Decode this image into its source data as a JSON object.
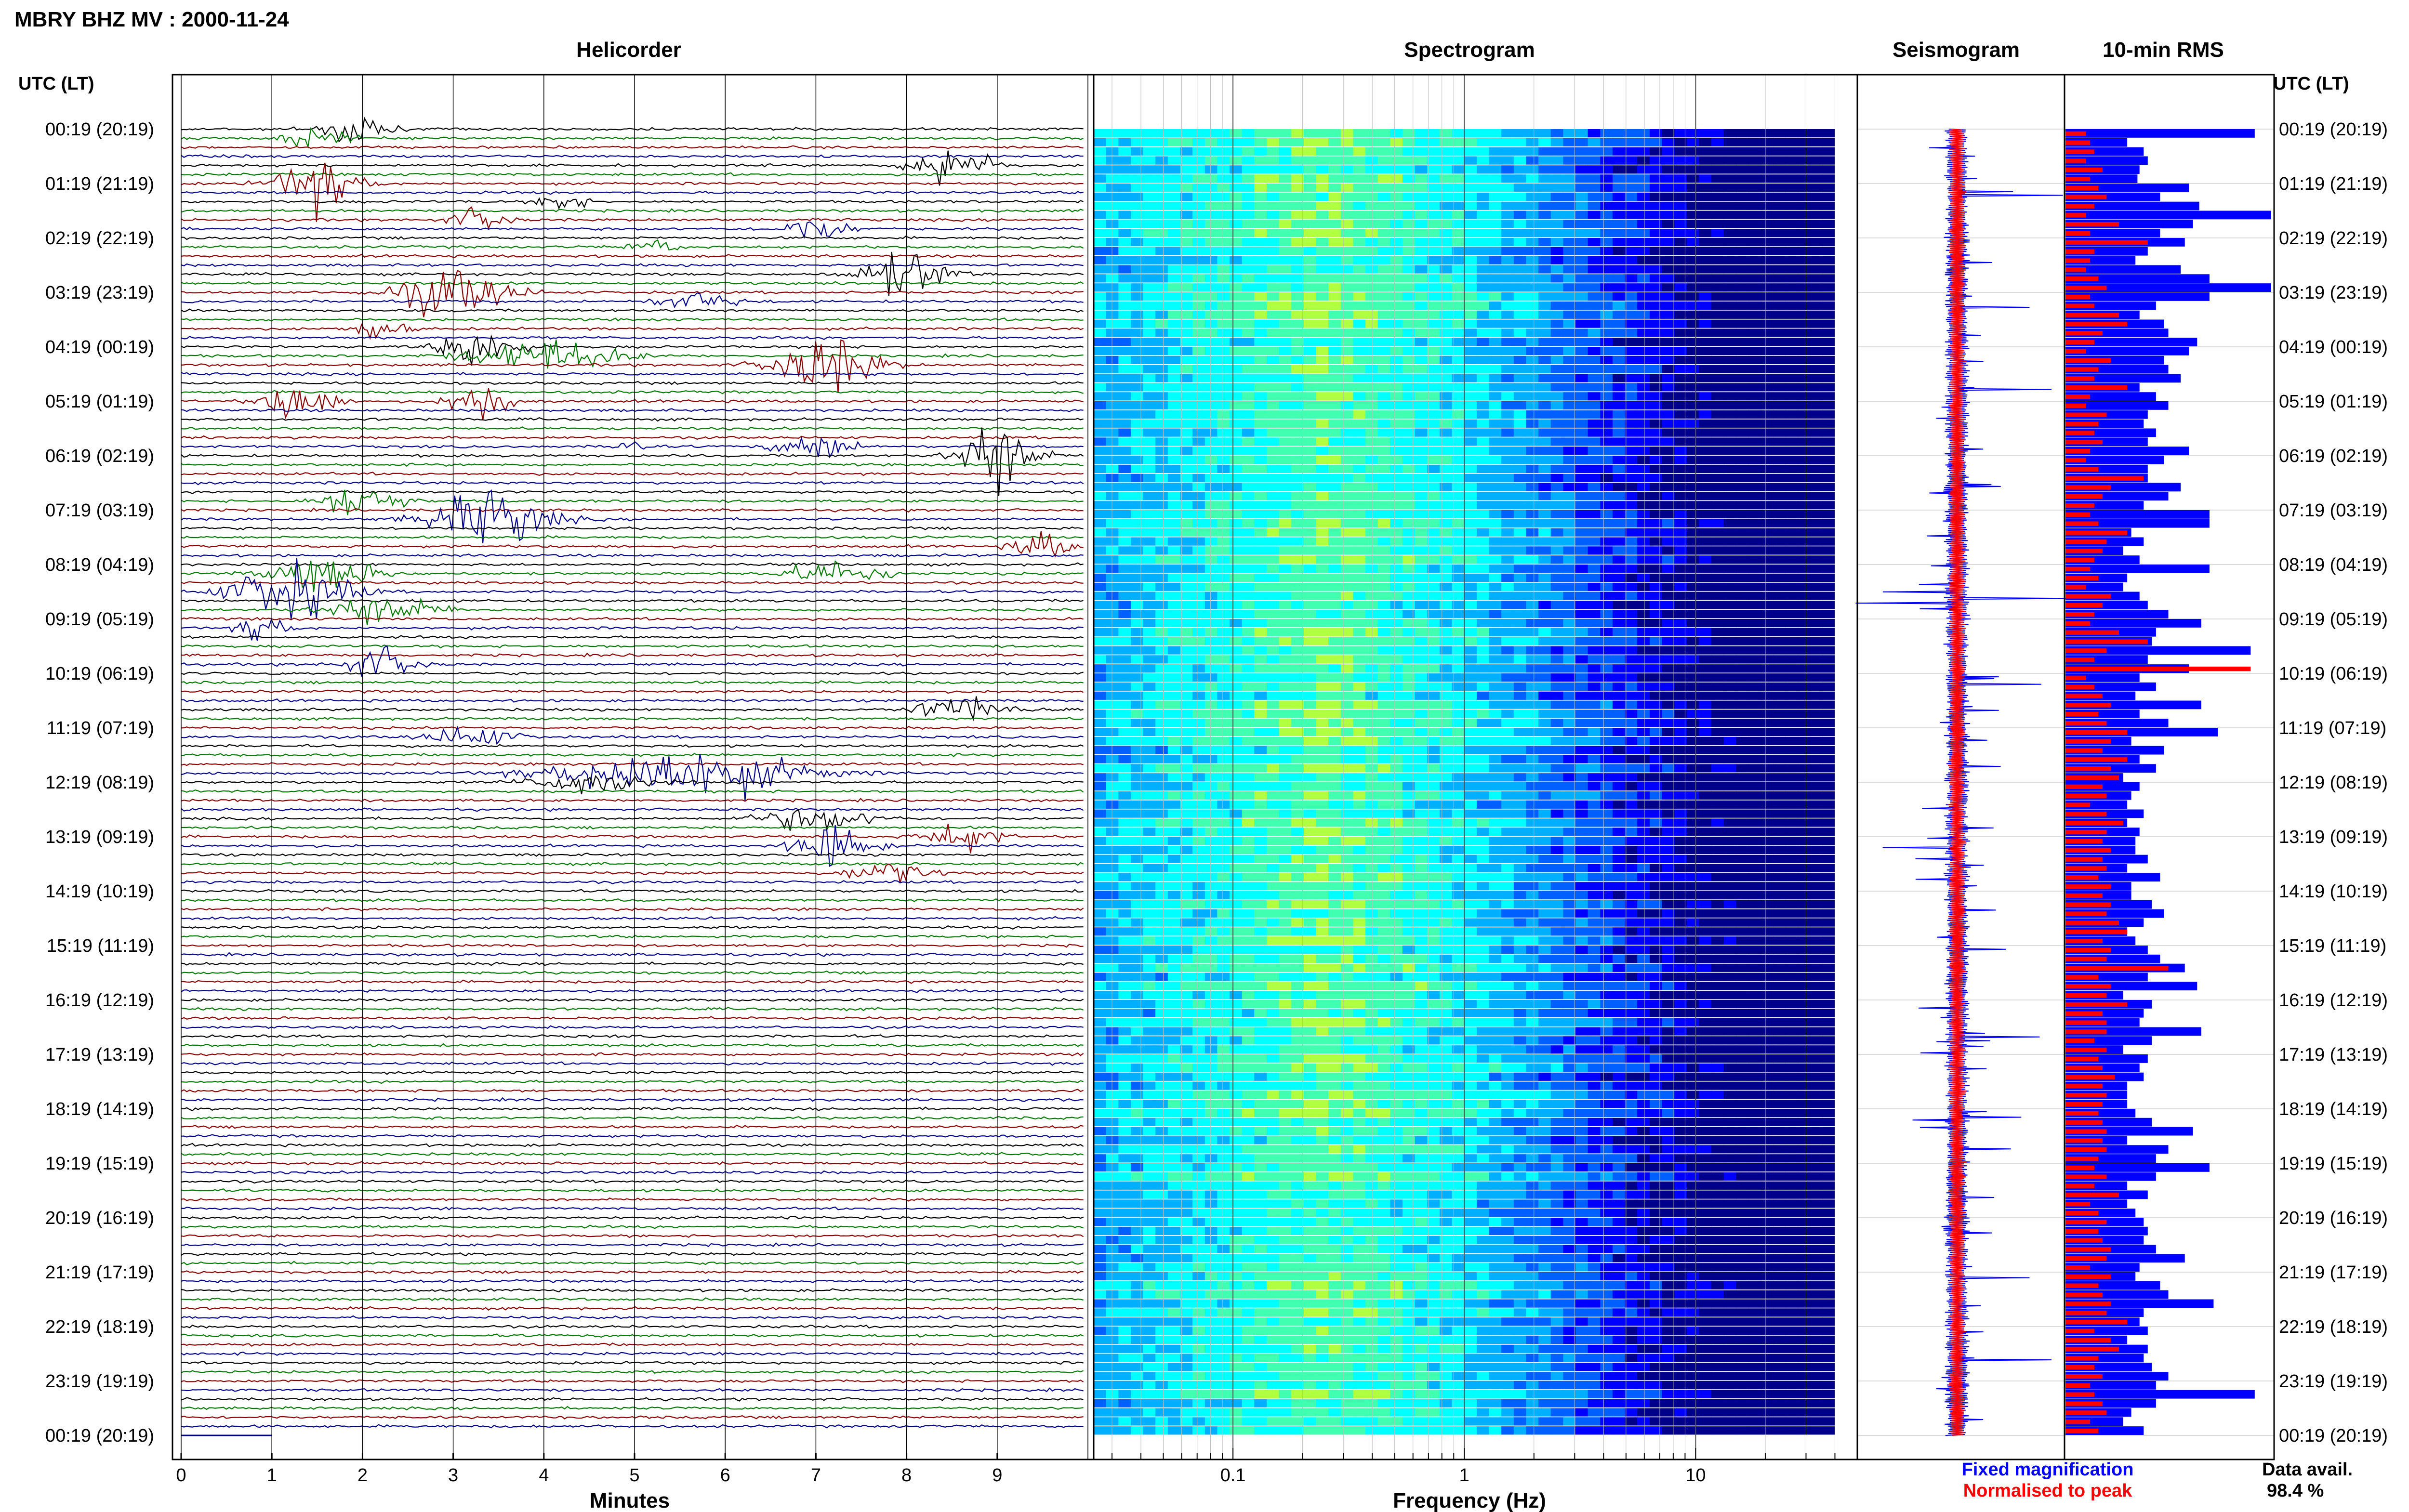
{
  "header": {
    "title": "MBRY BHZ MV : 2000-11-24",
    "utc_label_left": "UTC (LT)",
    "utc_label_right": "UTC (LT)"
  },
  "panels": {
    "helicorder": "Helicorder",
    "spectrogram": "Spectrogram",
    "seismogram": "Seismogram",
    "rms": "10-min RMS"
  },
  "time_labels": [
    "00:19 (20:19)",
    "01:19 (21:19)",
    "02:19 (22:19)",
    "03:19 (23:19)",
    "04:19 (00:19)",
    "05:19 (01:19)",
    "06:19 (02:19)",
    "07:19 (03:19)",
    "08:19 (04:19)",
    "09:19 (05:19)",
    "10:19 (06:19)",
    "11:19 (07:19)",
    "12:19 (08:19)",
    "13:19 (09:19)",
    "14:19 (10:19)",
    "15:19 (11:19)",
    "16:19 (12:19)",
    "17:19 (13:19)",
    "18:19 (14:19)",
    "19:19 (15:19)",
    "20:19 (16:19)",
    "21:19 (17:19)",
    "22:19 (18:19)",
    "23:19 (19:19)",
    "00:19 (20:19)"
  ],
  "legend": {
    "fixed": "Fixed magnification",
    "normalised": "Normalised to peak",
    "fixed_color": "#0000ff",
    "normalised_color": "#ff0000"
  },
  "data_avail": {
    "label": "Data avail.",
    "value": "98.4 %"
  },
  "chart_data": [
    {
      "type": "line",
      "name": "helicorder",
      "xlabel": "Minutes",
      "xticks": [
        "0",
        "1",
        "2",
        "3",
        "4",
        "5",
        "6",
        "7",
        "8",
        "9"
      ],
      "xlim": [
        0,
        10
      ],
      "rows_per_hour": 6,
      "row_colors": [
        "#000000",
        "#007a00",
        "#8b0000",
        "#00008b"
      ],
      "events": [
        {
          "row": 0,
          "minute": 1.9,
          "width": 0.9,
          "amp": 3.0
        },
        {
          "row": 1,
          "minute": 1.5,
          "width": 0.8,
          "amp": 2.0
        },
        {
          "row": 4,
          "minute": 8.5,
          "width": 1.0,
          "amp": 4.5
        },
        {
          "row": 6,
          "minute": 1.5,
          "width": 1.1,
          "amp": 4.5
        },
        {
          "row": 8,
          "minute": 4.2,
          "width": 0.6,
          "amp": 2.0
        },
        {
          "row": 10,
          "minute": 3.3,
          "width": 0.8,
          "amp": 2.0
        },
        {
          "row": 11,
          "minute": 7.0,
          "width": 0.9,
          "amp": 2.2
        },
        {
          "row": 13,
          "minute": 5.2,
          "width": 0.6,
          "amp": 1.5
        },
        {
          "row": 16,
          "minute": 8.0,
          "width": 1.2,
          "amp": 4.0
        },
        {
          "row": 18,
          "minute": 3.0,
          "width": 1.6,
          "amp": 4.0
        },
        {
          "row": 19,
          "minute": 5.7,
          "width": 1.1,
          "amp": 1.6
        },
        {
          "row": 22,
          "minute": 2.2,
          "width": 0.7,
          "amp": 1.8
        },
        {
          "row": 24,
          "minute": 3.3,
          "width": 1.0,
          "amp": 4.0
        },
        {
          "row": 25,
          "minute": 4.0,
          "width": 2.0,
          "amp": 2.8
        },
        {
          "row": 26,
          "minute": 7.1,
          "width": 1.4,
          "amp": 5.0
        },
        {
          "row": 30,
          "minute": 1.3,
          "width": 0.9,
          "amp": 4.0
        },
        {
          "row": 30,
          "minute": 3.3,
          "width": 0.8,
          "amp": 4.0
        },
        {
          "row": 35,
          "minute": 5.0,
          "width": 0.4,
          "amp": 2.0
        },
        {
          "row": 35,
          "minute": 7.0,
          "width": 1.0,
          "amp": 2.4
        },
        {
          "row": 36,
          "minute": 9.0,
          "width": 1.0,
          "amp": 6.5
        },
        {
          "row": 41,
          "minute": 2.0,
          "width": 1.0,
          "amp": 3.5
        },
        {
          "row": 43,
          "minute": 3.4,
          "width": 1.6,
          "amp": 5.0
        },
        {
          "row": 46,
          "minute": 9.5,
          "width": 0.8,
          "amp": 2.2
        },
        {
          "row": 49,
          "minute": 1.6,
          "width": 1.4,
          "amp": 3.0
        },
        {
          "row": 49,
          "minute": 7.2,
          "width": 1.4,
          "amp": 2.0
        },
        {
          "row": 51,
          "minute": 1.2,
          "width": 1.6,
          "amp": 5.0
        },
        {
          "row": 53,
          "minute": 2.2,
          "width": 1.5,
          "amp": 2.5
        },
        {
          "row": 55,
          "minute": 0.9,
          "width": 0.6,
          "amp": 2.8
        },
        {
          "row": 59,
          "minute": 2.2,
          "width": 1.0,
          "amp": 2.8
        },
        {
          "row": 64,
          "minute": 8.6,
          "width": 1.2,
          "amp": 2.4
        },
        {
          "row": 67,
          "minute": 3.2,
          "width": 1.2,
          "amp": 1.8
        },
        {
          "row": 71,
          "minute": 5.5,
          "width": 3.2,
          "amp": 4.5
        },
        {
          "row": 72,
          "minute": 4.5,
          "width": 1.6,
          "amp": 2.0
        },
        {
          "row": 76,
          "minute": 7.0,
          "width": 1.6,
          "amp": 2.0
        },
        {
          "row": 78,
          "minute": 8.6,
          "width": 1.0,
          "amp": 2.4
        },
        {
          "row": 79,
          "minute": 7.2,
          "width": 1.0,
          "amp": 4.0
        },
        {
          "row": 82,
          "minute": 7.8,
          "width": 1.2,
          "amp": 1.8
        }
      ]
    },
    {
      "type": "heatmap",
      "name": "spectrogram",
      "xlabel": "Frequency (Hz)",
      "xscale": "log",
      "xlim": [
        0.025,
        50
      ],
      "xticks": [
        "0.1",
        "1",
        "10"
      ],
      "data_fmax": 40,
      "colormap": [
        "#00008b",
        "#0000ff",
        "#0060ff",
        "#00b0ff",
        "#00ffff",
        "#40ffb0",
        "#b0ff40",
        "#ffff00",
        "#ff8000"
      ],
      "peak_band_hz": [
        0.15,
        0.4
      ],
      "rows": 144
    },
    {
      "type": "line",
      "name": "seismogram",
      "series": [
        {
          "name": "Fixed magnification",
          "color": "#0000ff"
        },
        {
          "name": "Normalised to peak",
          "color": "#ff0000"
        }
      ]
    },
    {
      "type": "bar",
      "name": "10-min RMS",
      "orientation": "horizontal",
      "series": [
        {
          "name": "Fixed magnification",
          "color": "#0000ff",
          "values": [
            0.92,
            0.3,
            0.38,
            0.4,
            0.36,
            0.35,
            0.6,
            0.46,
            0.65,
            1.0,
            0.62,
            0.46,
            0.58,
            0.4,
            0.34,
            0.56,
            0.7,
            1.0,
            0.7,
            0.44,
            0.36,
            0.48,
            0.5,
            0.64,
            0.6,
            0.48,
            0.5,
            0.56,
            0.36,
            0.44,
            0.5,
            0.4,
            0.38,
            0.44,
            0.4,
            0.6,
            0.48,
            0.4,
            0.4,
            0.56,
            0.5,
            0.38,
            0.7,
            0.7,
            0.32,
            0.38,
            0.28,
            0.36,
            0.7,
            0.3,
            0.28,
            0.36,
            0.4,
            0.5,
            0.66,
            0.44,
            0.42,
            0.9,
            0.4,
            0.6,
            0.36,
            0.44,
            0.34,
            0.66,
            0.36,
            0.5,
            0.74,
            0.32,
            0.48,
            0.36,
            0.44,
            0.28,
            0.36,
            0.32,
            0.3,
            0.38,
            0.3,
            0.36,
            0.34,
            0.34,
            0.4,
            0.3,
            0.46,
            0.32,
            0.32,
            0.42,
            0.48,
            0.38,
            0.3,
            0.34,
            0.4,
            0.46,
            0.58,
            0.4,
            0.64,
            0.28,
            0.42,
            0.38,
            0.36,
            0.66,
            0.42,
            0.28,
            0.4,
            0.36,
            0.38,
            0.3,
            0.3,
            0.3,
            0.34,
            0.42,
            0.62,
            0.3,
            0.5,
            0.44,
            0.7,
            0.44,
            0.3,
            0.4,
            0.3,
            0.34,
            0.38,
            0.4,
            0.38,
            0.44,
            0.58,
            0.36,
            0.34,
            0.46,
            0.5,
            0.72,
            0.38,
            0.36,
            0.4,
            0.3,
            0.4,
            0.38,
            0.42,
            0.5,
            0.44,
            0.92,
            0.44,
            0.32,
            0.28,
            0.38
          ]
        },
        {
          "name": "Normalised to peak",
          "color": "#ff0000",
          "values": [
            0.1,
            0.12,
            0.14,
            0.1,
            0.18,
            0.12,
            0.16,
            0.2,
            0.14,
            0.1,
            0.26,
            0.12,
            0.4,
            0.14,
            0.12,
            0.1,
            0.16,
            0.2,
            0.12,
            0.14,
            0.26,
            0.3,
            0.18,
            0.14,
            0.1,
            0.22,
            0.16,
            0.14,
            0.3,
            0.12,
            0.1,
            0.2,
            0.16,
            0.14,
            0.18,
            0.12,
            0.1,
            0.16,
            0.38,
            0.22,
            0.18,
            0.14,
            0.12,
            0.16,
            0.3,
            0.2,
            0.18,
            0.14,
            0.12,
            0.16,
            0.1,
            0.22,
            0.18,
            0.14,
            0.12,
            0.26,
            0.4,
            0.2,
            0.14,
            0.9,
            0.1,
            0.14,
            0.18,
            0.22,
            0.16,
            0.2,
            0.3,
            0.22,
            0.18,
            0.3,
            0.22,
            0.26,
            0.18,
            0.2,
            0.12,
            0.2,
            0.28,
            0.2,
            0.18,
            0.22,
            0.18,
            0.2,
            0.16,
            0.22,
            0.18,
            0.22,
            0.2,
            0.26,
            0.3,
            0.18,
            0.22,
            0.2,
            0.5,
            0.16,
            0.22,
            0.2,
            0.3,
            0.18,
            0.2,
            0.2,
            0.14,
            0.2,
            0.16,
            0.18,
            0.24,
            0.18,
            0.2,
            0.18,
            0.16,
            0.18,
            0.2,
            0.18,
            0.2,
            0.16,
            0.14,
            0.2,
            0.14,
            0.26,
            0.12,
            0.16,
            0.2,
            0.16,
            0.18,
            0.22,
            0.2,
            0.12,
            0.22,
            0.16,
            0.18,
            0.22,
            0.2,
            0.3,
            0.14,
            0.22,
            0.26,
            0.16,
            0.14,
            0.18,
            0.12,
            0.14,
            0.18,
            0.2,
            0.12,
            0.16
          ]
        }
      ]
    }
  ],
  "colors": {
    "frame": "#000000",
    "grid": "#d0d0d0",
    "background": "#ffffff"
  }
}
